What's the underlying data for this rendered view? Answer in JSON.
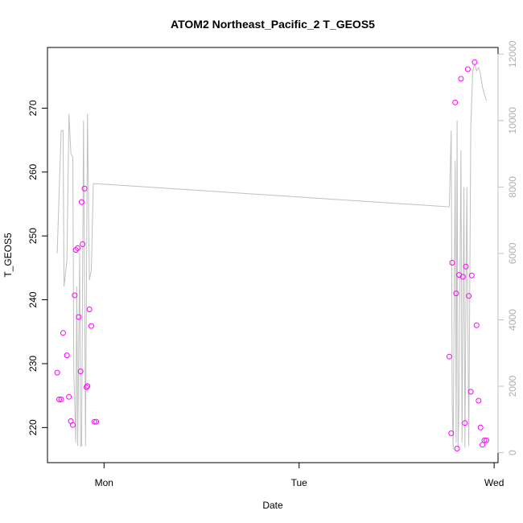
{
  "chart_data": {
    "type": "scatter",
    "title": "ATOM2 Northeast_Pacific_2 T_GEOS5",
    "xlabel": "Date",
    "ylabel": "T_GEOS5",
    "x_ticks": [
      "Mon",
      "Tue",
      "Wed"
    ],
    "x_tick_values": [
      1,
      2,
      3
    ],
    "xlim": [
      0.71,
      3.02
    ],
    "ylim": [
      214.5,
      279.5
    ],
    "y_ticks": [
      220,
      230,
      240,
      250,
      260,
      270
    ],
    "y2lim": [
      -300,
      12200
    ],
    "y2_ticks": [
      0,
      2000,
      4000,
      6000,
      8000,
      10000,
      12000
    ],
    "grid": false,
    "legend": "none",
    "colors": {
      "points": "#ff00ff",
      "line": "#c0c0c0",
      "right_axis": "#c0c0c0",
      "left_axis": "#000000"
    },
    "series": [
      {
        "kind": "points",
        "axis": "left",
        "x": [
          0.76,
          0.77,
          0.78,
          0.79,
          0.81,
          0.82,
          0.83,
          0.84,
          0.85,
          0.855,
          0.865,
          0.87,
          0.88,
          0.885,
          0.89,
          0.9,
          0.91,
          0.915,
          0.925,
          0.935,
          0.95,
          0.96,
          2.77,
          2.78,
          2.785,
          2.8,
          2.805,
          2.81,
          2.82,
          2.83,
          2.84,
          2.85,
          2.855,
          2.865,
          2.87,
          2.88,
          2.885,
          2.9,
          2.91,
          2.92,
          2.93,
          2.94,
          2.95,
          2.96
        ],
        "y": [
          228.6,
          224.4,
          224.4,
          234.8,
          231.3,
          224.8,
          221.0,
          220.4,
          240.7,
          247.8,
          248.1,
          237.3,
          228.8,
          255.3,
          248.7,
          257.4,
          226.3,
          226.5,
          238.5,
          235.9,
          220.9,
          220.9,
          231.1,
          219.1,
          245.8,
          270.9,
          241.0,
          216.7,
          243.9,
          274.6,
          243.6,
          220.7,
          245.2,
          276.1,
          240.6,
          225.6,
          243.8,
          277.2,
          236.0,
          224.2,
          220.0,
          217.3,
          218.0,
          218.0
        ]
      },
      {
        "kind": "line",
        "axis": "right",
        "x": [
          0.76,
          0.78,
          0.79,
          0.795,
          0.81,
          0.82,
          0.83,
          0.84,
          0.845,
          0.855,
          0.86,
          0.865,
          0.875,
          0.88,
          0.885,
          0.895,
          0.905,
          0.915,
          0.925,
          0.935,
          0.945,
          0.955,
          2.77,
          2.78,
          2.785,
          2.79,
          2.8,
          2.805,
          2.81,
          2.815,
          2.82,
          2.83,
          2.835,
          2.845,
          2.85,
          2.86,
          2.87,
          2.88,
          2.89,
          2.9,
          2.905,
          2.91,
          2.92,
          2.93,
          2.94,
          2.95,
          2.96
        ],
        "y": [
          6000,
          9700,
          9700,
          5000,
          5800,
          10200,
          9000,
          8900,
          2500,
          300,
          5000,
          200,
          6000,
          200,
          200,
          10000,
          200,
          10200,
          5200,
          5500,
          8100,
          8100,
          7400,
          9700,
          1500,
          100,
          8800,
          300,
          10000,
          150,
          1500,
          9100,
          300,
          8000,
          150,
          8000,
          200,
          9800,
          11500,
          11700,
          11600,
          11500,
          11600,
          11400,
          11000,
          10800,
          10600
        ]
      }
    ]
  }
}
